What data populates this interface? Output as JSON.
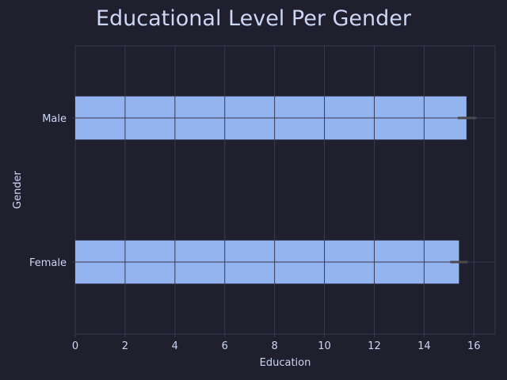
{
  "chart_data": {
    "type": "bar",
    "orientation": "horizontal",
    "title": "Educational Level Per Gender",
    "xlabel": "Education",
    "ylabel": "Gender",
    "categories": [
      "Male",
      "Female"
    ],
    "values": [
      15.7,
      15.4
    ],
    "error_intervals": [
      [
        15.35,
        16.1
      ],
      [
        15.05,
        15.75
      ]
    ],
    "xlim": [
      0,
      16.85
    ],
    "xticks": [
      0,
      2,
      4,
      6,
      8,
      10,
      12,
      14,
      16
    ],
    "grid": true
  },
  "colors": {
    "background": "#1f1f2e",
    "bar": "#94b4f0",
    "grid": "#3a3a52",
    "text": "#cdd6f4",
    "error_bar": "#4a4a4a"
  }
}
